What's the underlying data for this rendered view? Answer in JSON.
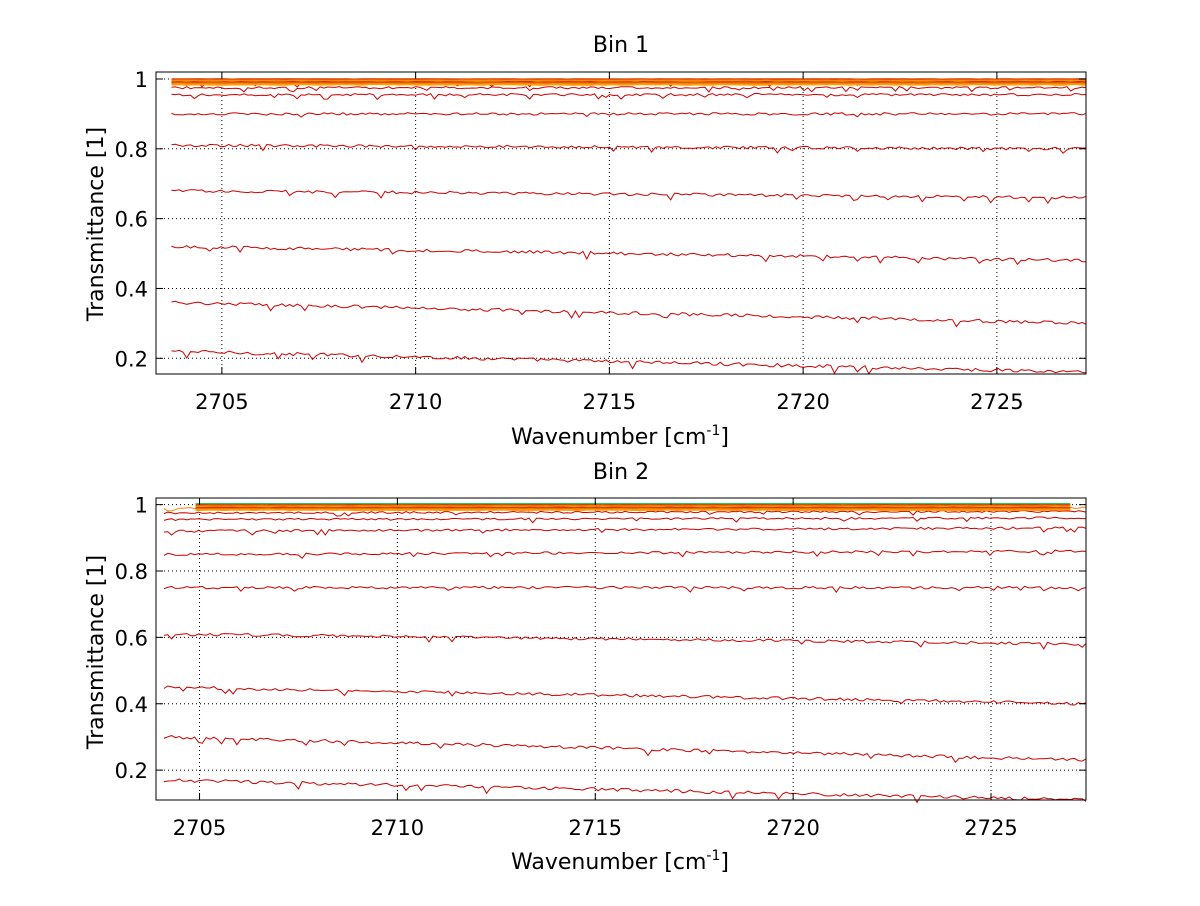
{
  "colors": {
    "background": "#ffffff",
    "axes": "#000000",
    "grid": "#000000",
    "trace_main": "#cc0000",
    "trace_dense": [
      "#d42a00",
      "#e04a00",
      "#ea6a00",
      "#f58a00",
      "#ff9f00"
    ],
    "trace_top_accent": "#00c060"
  },
  "chart_data": [
    {
      "type": "line",
      "title": "Bin 1",
      "xlabel_main": "Wavenumber [cm",
      "xlabel_sup": "-1",
      "xlabel_end": "]",
      "ylabel": "Transmittance [1]",
      "xlim": [
        2703.3,
        2727.3
      ],
      "ylim": [
        0.155,
        1.02
      ],
      "xticks": [
        2705,
        2710,
        2715,
        2720,
        2725
      ],
      "yticks": [
        0.2,
        0.4,
        0.6,
        0.8,
        1
      ],
      "ytick_labels": [
        "0.2",
        "0.4",
        "0.6",
        "0.8",
        "1"
      ],
      "grid": true,
      "series": [
        {
          "x": [
            2703.7,
            2727.3
          ],
          "y": [
            0.22,
            0.16
          ]
        },
        {
          "x": [
            2703.7,
            2727.3
          ],
          "y": [
            0.36,
            0.3
          ]
        },
        {
          "x": [
            2703.7,
            2727.3
          ],
          "y": [
            0.52,
            0.48
          ]
        },
        {
          "x": [
            2703.7,
            2727.3
          ],
          "y": [
            0.68,
            0.66
          ]
        },
        {
          "x": [
            2703.7,
            2727.3
          ],
          "y": [
            0.81,
            0.8
          ]
        },
        {
          "x": [
            2703.7,
            2727.3
          ],
          "y": [
            0.9,
            0.9
          ]
        },
        {
          "x": [
            2703.7,
            2727.3
          ],
          "y": [
            0.955,
            0.955
          ]
        },
        {
          "x": [
            2703.7,
            2727.3
          ],
          "y": [
            0.975,
            0.975
          ]
        },
        {
          "x": [
            2703.7,
            2727.3
          ],
          "y": [
            0.988,
            0.988
          ]
        },
        {
          "x": [
            2703.7,
            2727.3
          ],
          "y": [
            0.995,
            0.995
          ]
        },
        {
          "x": [
            2703.7,
            2727.3
          ],
          "y": [
            1.0,
            1.0
          ]
        }
      ]
    },
    {
      "type": "line",
      "title": "Bin 2",
      "xlabel_main": "Wavenumber [cm",
      "xlabel_sup": "-1",
      "xlabel_end": "]",
      "ylabel": "Transmittance [1]",
      "xlim": [
        2703.9,
        2727.4
      ],
      "ylim": [
        0.11,
        1.02
      ],
      "xticks": [
        2705,
        2710,
        2715,
        2720,
        2725
      ],
      "yticks": [
        0.2,
        0.4,
        0.6,
        0.8,
        1
      ],
      "ytick_labels": [
        "0.2",
        "0.4",
        "0.6",
        "0.8",
        "1"
      ],
      "grid": true,
      "series": [
        {
          "x": [
            2704.1,
            2727.4
          ],
          "y": [
            0.17,
            0.11
          ]
        },
        {
          "x": [
            2704.1,
            2727.4
          ],
          "y": [
            0.3,
            0.23
          ]
        },
        {
          "x": [
            2704.1,
            2727.4
          ],
          "y": [
            0.45,
            0.4
          ]
        },
        {
          "x": [
            2704.1,
            2727.4
          ],
          "y": [
            0.61,
            0.58
          ]
        },
        {
          "x": [
            2704.1,
            2727.4
          ],
          "y": [
            0.75,
            0.75
          ]
        },
        {
          "x": [
            2704.1,
            2727.4
          ],
          "y": [
            0.85,
            0.86
          ]
        },
        {
          "x": [
            2704.1,
            2727.4
          ],
          "y": [
            0.92,
            0.93
          ]
        },
        {
          "x": [
            2704.1,
            2727.4
          ],
          "y": [
            0.955,
            0.96
          ]
        },
        {
          "x": [
            2704.1,
            2727.4
          ],
          "y": [
            0.975,
            0.98
          ]
        },
        {
          "x": [
            2704.1,
            2727.4
          ],
          "y": [
            0.99,
            0.99
          ]
        },
        {
          "x": [
            2704.9,
            2727.0
          ],
          "y": [
            1.0,
            1.0
          ]
        }
      ]
    }
  ]
}
